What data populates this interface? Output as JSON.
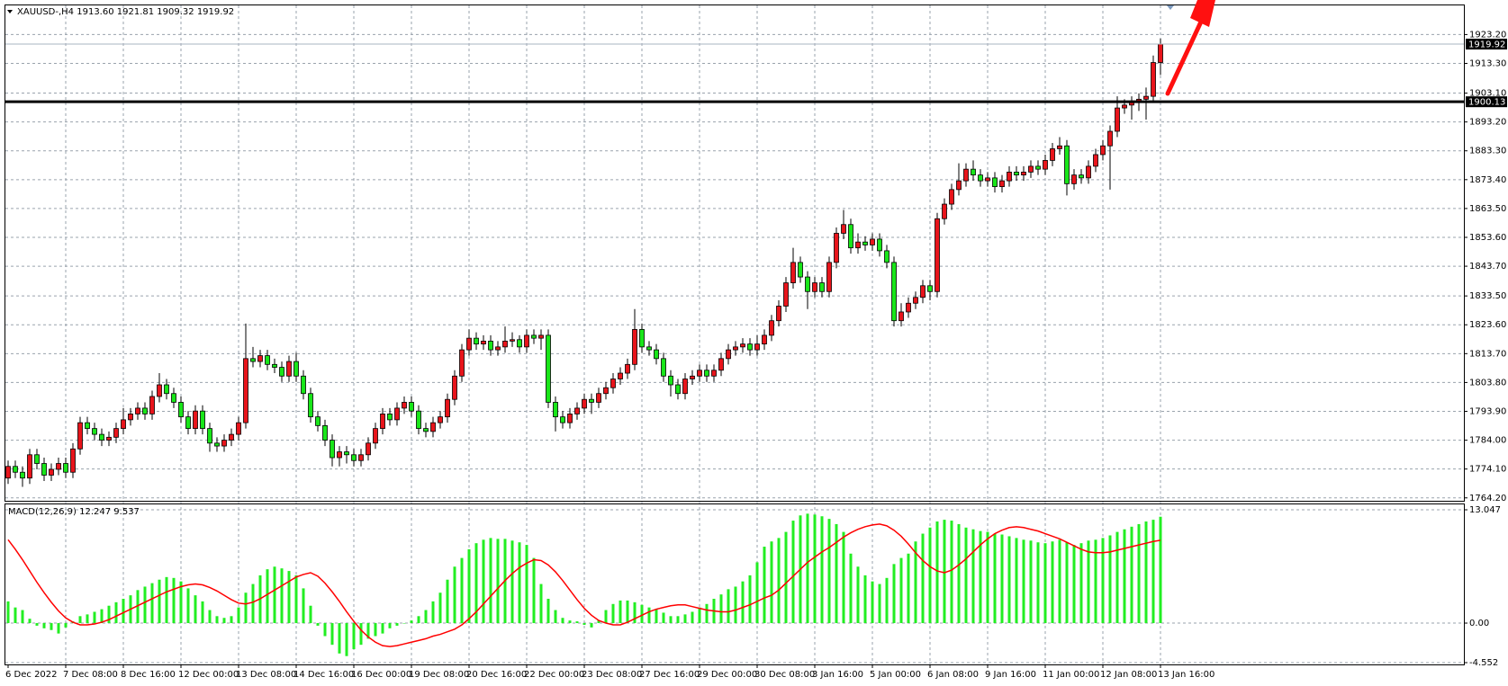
{
  "chart_data": [
    {
      "type": "candlestick",
      "title": "XAUUSD-,H4  1913.60 1921.81 1909.32 1919.92",
      "categories": [
        "6 Dec 2022",
        null,
        null,
        null,
        null,
        null,
        null,
        null,
        "7 Dec 08:00",
        null,
        null,
        null,
        null,
        null,
        null,
        null,
        "8 Dec 16:00",
        null,
        null,
        null,
        null,
        null,
        null,
        null,
        "12 Dec 00:00",
        null,
        null,
        null,
        null,
        null,
        null,
        null,
        "13 Dec 08:00",
        null,
        null,
        null,
        null,
        null,
        null,
        null,
        "14 Dec 16:00",
        null,
        null,
        null,
        null,
        null,
        null,
        null,
        "16 Dec 00:00",
        null,
        null,
        null,
        null,
        null,
        null,
        null,
        "19 Dec 08:00",
        null,
        null,
        null,
        null,
        null,
        null,
        null,
        "20 Dec 16:00",
        null,
        null,
        null,
        null,
        null,
        null,
        null,
        "22 Dec 00:00",
        null,
        null,
        null,
        null,
        null,
        null,
        null,
        "23 Dec 08:00",
        null,
        null,
        null,
        null,
        null,
        null,
        null,
        "27 Dec 16:00",
        null,
        null,
        null,
        null,
        null,
        null,
        null,
        "29 Dec 00:00",
        null,
        null,
        null,
        null,
        null,
        null,
        null,
        "30 Dec 08:00",
        null,
        null,
        null,
        null,
        null,
        null,
        null,
        "3 Jan 16:00",
        null,
        null,
        null,
        null,
        null,
        null,
        null,
        "5 Jan 00:00",
        null,
        null,
        null,
        null,
        null,
        null,
        null,
        "6 Jan 08:00",
        null,
        null,
        null,
        null,
        null,
        null,
        null,
        "9 Jan 16:00",
        null,
        null,
        null,
        null,
        null,
        null,
        null,
        "11 Jan 00:00",
        null,
        null,
        null,
        null,
        null,
        null,
        null,
        "12 Jan 08:00",
        null,
        null,
        null,
        null,
        null,
        null,
        null,
        "13 Jan 16:00"
      ],
      "open": [
        1771,
        1775,
        1773,
        1771,
        1779,
        1776,
        1772,
        1774,
        1776,
        1773,
        1781,
        1790,
        1788,
        1786,
        1784,
        1785,
        1788,
        1791,
        1793,
        1795,
        1793,
        1799,
        1803,
        1800,
        1797,
        1792,
        1788,
        1794,
        1788,
        1783,
        1782,
        1784,
        1786,
        1790,
        1812,
        1811,
        1813,
        1810,
        1809,
        1806,
        1811,
        1806,
        1800,
        1792,
        1789,
        1784,
        1778,
        1780,
        1779,
        1777,
        1779,
        1783,
        1788,
        1793,
        1791,
        1795,
        1797,
        1794,
        1788,
        1787,
        1790,
        1792,
        1798,
        1806,
        1815,
        1819,
        1817,
        1818,
        1815,
        1816,
        1818,
        1818.5,
        1816,
        1820,
        1819,
        1820,
        1797,
        1792,
        1790,
        1793,
        1795,
        1798,
        1797,
        1800,
        1802,
        1805,
        1807,
        1810,
        1822,
        1816,
        1815,
        1812,
        1806,
        1803,
        1800,
        1805,
        1806,
        1808,
        1806,
        1808,
        1812,
        1815,
        1816,
        1817,
        1815,
        1817,
        1820,
        1825,
        1830,
        1838,
        1845,
        1840,
        1835,
        1838,
        1835,
        1845,
        1855,
        1858,
        1850,
        1852,
        1851,
        1853,
        1849,
        1845,
        1825,
        1828,
        1831,
        1833,
        1837,
        1835,
        1860,
        1865,
        1870,
        1873,
        1877,
        1875,
        1873,
        1874,
        1871,
        1873,
        1876,
        1875,
        1876,
        1878,
        1877,
        1880,
        1884,
        1885,
        1872,
        1875,
        1874,
        1878,
        1882,
        1885,
        1890,
        1898,
        1899,
        1900,
        1901,
        1902,
        1913.6
      ],
      "high": [
        1777,
        1777,
        1775,
        1781,
        1781,
        1778,
        1776,
        1778,
        1778,
        1783,
        1792,
        1792,
        1790,
        1788,
        1787,
        1790,
        1795,
        1795,
        1797,
        1797,
        1801,
        1807,
        1805,
        1802,
        1799,
        1794,
        1796,
        1796,
        1790,
        1785,
        1786,
        1788,
        1792,
        1824,
        1816,
        1815,
        1815,
        1812,
        1811,
        1813,
        1814,
        1808,
        1802,
        1794,
        1791,
        1786,
        1782,
        1782,
        1781,
        1781,
        1785,
        1790,
        1795,
        1795,
        1797,
        1799,
        1799,
        1796,
        1790,
        1792,
        1794,
        1800,
        1808,
        1817,
        1822,
        1821,
        1820,
        1820,
        1818,
        1823,
        1821,
        1820,
        1822,
        1822,
        1822,
        1822,
        1799,
        1794,
        1795,
        1797,
        1800,
        1800,
        1802,
        1804,
        1807,
        1809,
        1812,
        1829,
        1824,
        1818,
        1817,
        1814,
        1808,
        1805,
        1807,
        1808,
        1810,
        1810,
        1810,
        1814,
        1817,
        1818,
        1819,
        1819,
        1820,
        1822,
        1827,
        1832,
        1840,
        1850,
        1847,
        1842,
        1840,
        1840,
        1847,
        1857,
        1863,
        1860,
        1855,
        1854,
        1855,
        1855,
        1851,
        1847,
        1831,
        1833,
        1835,
        1839,
        1839,
        1862,
        1867,
        1872,
        1879,
        1879,
        1880,
        1877,
        1876,
        1876,
        1875,
        1878,
        1878,
        1878,
        1880,
        1880,
        1882,
        1886,
        1888,
        1887,
        1877,
        1877,
        1880,
        1884,
        1887,
        1892,
        1902,
        1901,
        1902,
        1903,
        1905,
        1916,
        1921.81
      ],
      "low": [
        1769,
        1771,
        1768,
        1769,
        1774,
        1770,
        1770,
        1772,
        1771,
        1771,
        1779,
        1786,
        1784,
        1782,
        1782,
        1783,
        1786,
        1789,
        1791,
        1791,
        1791,
        1797,
        1798,
        1795,
        1790,
        1786,
        1786,
        1786,
        1780,
        1780,
        1780,
        1782,
        1784,
        1788,
        1809,
        1809,
        1808,
        1807,
        1804,
        1804,
        1804,
        1798,
        1790,
        1787,
        1782,
        1775,
        1775,
        1776,
        1775,
        1775,
        1777,
        1781,
        1786,
        1789,
        1789,
        1793,
        1792,
        1786,
        1785,
        1785,
        1788,
        1790,
        1796,
        1804,
        1813,
        1815,
        1815,
        1813,
        1813,
        1814,
        1816,
        1814,
        1814,
        1817,
        1815,
        1795,
        1787,
        1788,
        1788,
        1791,
        1793,
        1793,
        1795,
        1798,
        1800,
        1803,
        1805,
        1808,
        1814,
        1813,
        1810,
        1804,
        1799,
        1798,
        1798,
        1803,
        1804,
        1804,
        1804,
        1806,
        1810,
        1813,
        1814,
        1813,
        1813,
        1815,
        1818,
        1823,
        1828,
        1836,
        1838,
        1829,
        1833,
        1833,
        1833,
        1843,
        1853,
        1848,
        1848,
        1849,
        1849,
        1847,
        1843,
        1823,
        1823,
        1826,
        1829,
        1831,
        1832,
        1833,
        1858,
        1863,
        1868,
        1871,
        1873,
        1871,
        1871,
        1869,
        1869,
        1871,
        1873,
        1873,
        1874,
        1875,
        1875,
        1878,
        1882,
        1868,
        1870,
        1872,
        1872,
        1876,
        1880,
        1870,
        1888,
        1896,
        1894,
        1897,
        1894,
        1900,
        1909.32
      ],
      "close": [
        1775,
        1773,
        1771,
        1779,
        1776,
        1772,
        1774,
        1776,
        1773,
        1781,
        1790,
        1788,
        1786,
        1784,
        1785,
        1788,
        1791,
        1793,
        1795,
        1793,
        1799,
        1803,
        1800,
        1797,
        1792,
        1788,
        1794,
        1788,
        1783,
        1782,
        1784,
        1786,
        1790,
        1812,
        1811,
        1813,
        1810,
        1809,
        1806,
        1811,
        1806,
        1800,
        1792,
        1789,
        1784,
        1778,
        1780,
        1779,
        1777,
        1779,
        1783,
        1788,
        1793,
        1791,
        1795,
        1797,
        1794,
        1788,
        1787,
        1790,
        1792,
        1798,
        1806,
        1815,
        1819,
        1817,
        1818,
        1815,
        1816,
        1818,
        1818.5,
        1816,
        1820,
        1819,
        1820,
        1797,
        1792,
        1790,
        1793,
        1795,
        1798,
        1797,
        1800,
        1802,
        1805,
        1807,
        1810,
        1822,
        1816,
        1815,
        1812,
        1806,
        1803,
        1800,
        1805,
        1806,
        1808,
        1806,
        1808,
        1812,
        1815,
        1816,
        1817,
        1815,
        1817,
        1820,
        1825,
        1830,
        1838,
        1845,
        1840,
        1835,
        1838,
        1835,
        1845,
        1855,
        1858,
        1850,
        1852,
        1851,
        1853,
        1849,
        1845,
        1825,
        1828,
        1831,
        1833,
        1837,
        1835,
        1860,
        1865,
        1870,
        1873,
        1877,
        1875,
        1873,
        1874,
        1871,
        1873,
        1876,
        1875,
        1876,
        1878,
        1877,
        1880,
        1884,
        1885,
        1872,
        1875,
        1874,
        1878,
        1882,
        1885,
        1890,
        1898,
        1899,
        1900,
        1901,
        1902,
        1913.6,
        1919.92
      ],
      "bull_color": "#e8141b",
      "bear_color": "#19e619",
      "ylim": [
        1763.2,
        1933.2
      ],
      "yticks": [
        {
          "value": 1923.2,
          "label": "1923.20"
        },
        {
          "value": 1913.3,
          "label": "1913.30"
        },
        {
          "value": 1903.1,
          "label": "1903.10"
        },
        {
          "value": 1893.2,
          "label": "1893.20"
        },
        {
          "value": 1883.3,
          "label": "1883.30"
        },
        {
          "value": 1873.4,
          "label": "1873.40"
        },
        {
          "value": 1863.5,
          "label": "1863.50"
        },
        {
          "value": 1853.6,
          "label": "1853.60"
        },
        {
          "value": 1843.7,
          "label": "1843.70"
        },
        {
          "value": 1833.5,
          "label": "1833.50"
        },
        {
          "value": 1823.6,
          "label": "1823.60"
        },
        {
          "value": 1813.7,
          "label": "1813.70"
        },
        {
          "value": 1803.8,
          "label": "1803.80"
        },
        {
          "value": 1793.9,
          "label": "1793.90"
        },
        {
          "value": 1784,
          "label": "1784.00"
        },
        {
          "value": 1774.1,
          "label": "1774.10"
        },
        {
          "value": 1764.2,
          "label": "1764.20"
        }
      ],
      "price_line": 1919.92,
      "hline": 1900.13,
      "grid": true
    },
    {
      "type": "macd",
      "title": "MACD(12,26,9) 12.247 9.537",
      "series": [
        {
          "kind": "bar",
          "color": "#22ee22",
          "values": [
            2.5,
            1.8,
            1.5,
            0.5,
            -0.3,
            -0.6,
            -0.8,
            -1.2,
            -0.5,
            0.2,
            0.8,
            1.0,
            1.3,
            1.6,
            2.0,
            2.4,
            2.8,
            3.2,
            3.8,
            4.2,
            4.6,
            5.0,
            5.3,
            5.2,
            4.8,
            4.0,
            3.2,
            2.5,
            1.5,
            0.8,
            0.6,
            0.8,
            1.8,
            3.5,
            4.5,
            5.5,
            6.2,
            6.5,
            6.3,
            6.0,
            5.5,
            4.0,
            2.0,
            -0.3,
            -1.5,
            -2.5,
            -3.5,
            -3.8,
            -3.0,
            -2.5,
            -1.8,
            -1.5,
            -1.2,
            -0.6,
            -0.3,
            0,
            0.3,
            0.8,
            1.5,
            2.5,
            3.5,
            5.0,
            6.5,
            7.5,
            8.5,
            9.2,
            9.6,
            9.8,
            9.7,
            9.7,
            9.5,
            9.3,
            9.0,
            7.5,
            4.5,
            2.8,
            1.5,
            0.6,
            0.3,
            0.2,
            -0.2,
            -0.5,
            0.3,
            1.5,
            2.2,
            2.6,
            2.6,
            2.4,
            2.1,
            1.8,
            1.6,
            1.2,
            0.8,
            0.8,
            1.0,
            1.3,
            1.8,
            2.2,
            2.8,
            3.3,
            3.9,
            4.2,
            4.8,
            5.5,
            7.0,
            8.8,
            9.4,
            9.8,
            10.5,
            11.8,
            12.4,
            12.6,
            12.5,
            12.3,
            12.0,
            11.4,
            10.5,
            8.0,
            6.5,
            5.5,
            4.8,
            4.5,
            5.2,
            6.8,
            7.5,
            8.0,
            9.4,
            10.3,
            11.0,
            11.7,
            11.9,
            11.8,
            11.4,
            11.0,
            10.8,
            10.6,
            10.5,
            10.3,
            10.2,
            10.0,
            9.8,
            9.6,
            9.5,
            9.3,
            9.2,
            9.4,
            9.6,
            9.3,
            9.0,
            9.2,
            9.5,
            9.6,
            9.8,
            10.1,
            10.5,
            10.8,
            11.1,
            11.4,
            11.7,
            11.9,
            12.247
          ]
        },
        {
          "kind": "line",
          "color": "#ff0000",
          "values": [
            9.6,
            8.5,
            7.3,
            6.0,
            4.7,
            3.5,
            2.4,
            1.4,
            0.6,
            0.1,
            -0.2,
            -0.2,
            -0.1,
            0.1,
            0.4,
            0.8,
            1.2,
            1.6,
            2.0,
            2.4,
            2.8,
            3.2,
            3.6,
            3.9,
            4.2,
            4.4,
            4.5,
            4.4,
            4.1,
            3.7,
            3.2,
            2.7,
            2.3,
            2.2,
            2.4,
            2.8,
            3.3,
            3.8,
            4.3,
            4.8,
            5.3,
            5.6,
            5.8,
            5.4,
            4.6,
            3.6,
            2.5,
            1.3,
            0.2,
            -0.8,
            -1.6,
            -2.2,
            -2.6,
            -2.7,
            -2.6,
            -2.4,
            -2.2,
            -2.0,
            -1.8,
            -1.5,
            -1.3,
            -1.0,
            -0.7,
            -0.2,
            0.5,
            1.3,
            2.2,
            3.1,
            4.0,
            4.9,
            5.7,
            6.4,
            6.9,
            7.3,
            7.2,
            6.7,
            5.9,
            4.9,
            3.8,
            2.7,
            1.7,
            0.9,
            0.3,
            0.0,
            -0.2,
            -0.2,
            0.1,
            0.5,
            0.9,
            1.3,
            1.6,
            1.8,
            2.0,
            2.1,
            2.1,
            1.9,
            1.7,
            1.5,
            1.4,
            1.3,
            1.3,
            1.5,
            1.8,
            2.1,
            2.5,
            2.9,
            3.2,
            3.8,
            4.6,
            5.4,
            6.2,
            7.0,
            7.6,
            8.2,
            8.7,
            9.3,
            9.9,
            10.4,
            10.8,
            11.1,
            11.3,
            11.4,
            11.2,
            10.7,
            10.0,
            9.1,
            8.1,
            7.2,
            6.5,
            6.0,
            5.8,
            6.1,
            6.7,
            7.4,
            8.2,
            9.0,
            9.7,
            10.3,
            10.7,
            11.0,
            11.1,
            11.0,
            10.8,
            10.6,
            10.3,
            10.0,
            9.7,
            9.3,
            8.9,
            8.5,
            8.2,
            8.1,
            8.1,
            8.2,
            8.4,
            8.6,
            8.8,
            9.0,
            9.2,
            9.4,
            9.537
          ]
        }
      ],
      "ylim": [
        -4.76,
        13.67
      ],
      "yticks": [
        13.047,
        {
          "value": 0,
          "label": "0.00"
        },
        -4.552
      ],
      "grid": true
    }
  ]
}
